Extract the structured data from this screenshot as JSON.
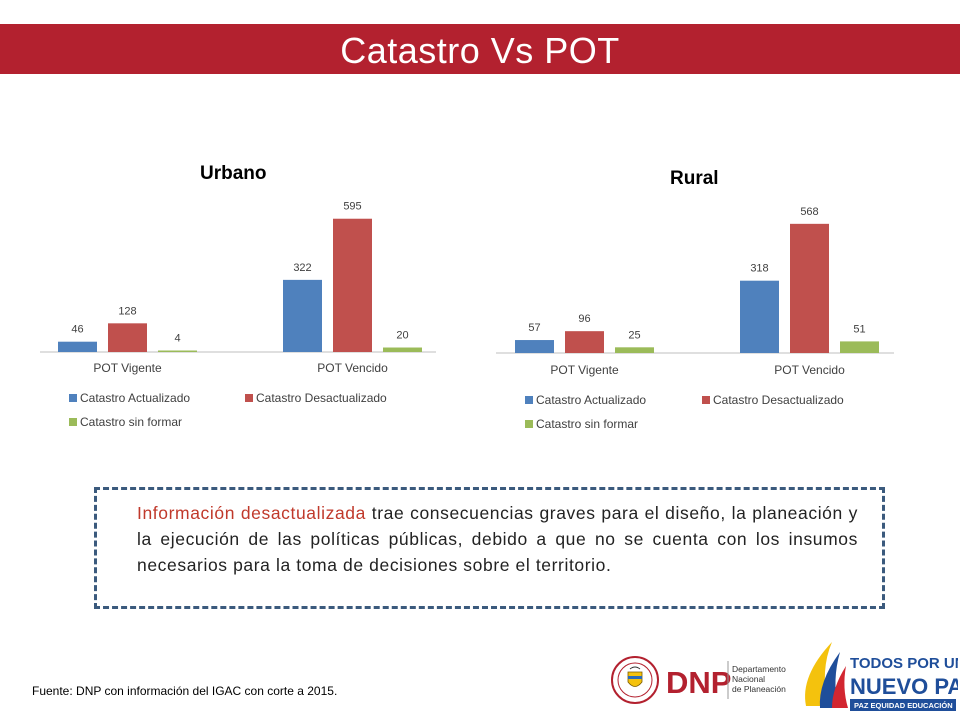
{
  "header": {
    "title": "Catastro Vs POT"
  },
  "colors": {
    "banner": "#b3212f",
    "series": [
      "#4f81bd",
      "#c0504d",
      "#9bbb59"
    ],
    "note_border": "#3b5a7d",
    "note_highlight": "#c0392b"
  },
  "chart_data": [
    {
      "type": "bar",
      "title": "Urbano",
      "categories": [
        "POT Vigente",
        "POT Vencido"
      ],
      "series": [
        {
          "name": "Catastro Actualizado",
          "values": [
            46,
            322
          ]
        },
        {
          "name": "Catastro Desactualizado",
          "values": [
            128,
            595
          ]
        },
        {
          "name": "Catastro sin formar",
          "values": [
            4,
            20
          ]
        }
      ],
      "ylim": [
        0,
        650
      ],
      "grid": false,
      "legend": "bottom"
    },
    {
      "type": "bar",
      "title": "Rural",
      "categories": [
        "POT Vigente",
        "POT Vencido"
      ],
      "series": [
        {
          "name": "Catastro Actualizado",
          "values": [
            57,
            318
          ]
        },
        {
          "name": "Catastro Desactualizado",
          "values": [
            96,
            568
          ]
        },
        {
          "name": "Catastro sin formar",
          "values": [
            25,
            51
          ]
        }
      ],
      "ylim": [
        0,
        650
      ],
      "grid": false,
      "legend": "bottom"
    }
  ],
  "note": {
    "highlight": "Información desactualizada",
    "text": " trae consecuencias graves para el diseño, la planeación y la ejecución de las políticas públicas, debido a que no se cuenta con los insumos necesarios para la toma de decisiones sobre el territorio."
  },
  "footnote": "Fuente: DNP con información del IGAC con corte a 2015.",
  "logos": {
    "dnp_short": "DNP",
    "dnp_line1": "Departamento",
    "dnp_line2": "Nacional",
    "dnp_line3": "de Planeación",
    "gov_line1": "TODOS POR UN",
    "gov_line2": "NUEVO PAÍS",
    "gov_line3": "PAZ  EQUIDAD  EDUCACIÓN"
  }
}
